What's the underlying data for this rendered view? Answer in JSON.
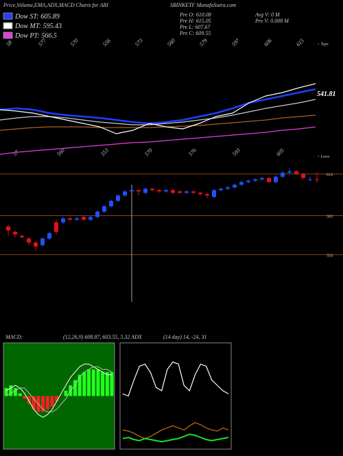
{
  "header": {
    "title": "Price,Volume,EMA,ADX,MACD Charts for ARI",
    "site": "SBINKETF MunafaSutra.com",
    "legend": [
      {
        "label": "Dow ST: 605.89",
        "color": "#1e40ff"
      },
      {
        "label": "Dow MT: 595.43",
        "color": "#ffffff"
      },
      {
        "label": "Dow PT: 566.5",
        "color": "#e040e0"
      }
    ],
    "info": [
      "Pre O: 610.08",
      "Pre H: 615.05",
      "Pre L: 607.67",
      "Pre C: 609.55",
      "Avg V: 0 M",
      "Pre V: 0.008 M"
    ]
  },
  "chart_data": [
    {
      "type": "line",
      "tops_label": "< Tops",
      "lows_label": "< Lows",
      "level_label": "541.81",
      "top_labels": [
        "58",
        "577",
        "570",
        "556",
        "573",
        "560",
        "579",
        "597",
        "606",
        "615"
      ],
      "bottom_labels": [
        "57",
        "560",
        "553",
        "570",
        "576",
        "593",
        "605"
      ],
      "ylim": [
        480,
        655
      ],
      "series": [
        {
          "name": "Price",
          "color": "#ffffff",
          "values": [
            555,
            553,
            550,
            545,
            540,
            535,
            530,
            520,
            525,
            535,
            530,
            527,
            535,
            545,
            550,
            565,
            575,
            580,
            587,
            593
          ]
        },
        {
          "name": "EMA short",
          "color": "#1e40ff",
          "values": [
            555,
            557,
            555,
            550,
            547,
            545,
            543,
            540,
            537,
            535,
            537,
            540,
            545,
            550,
            557,
            565,
            570,
            575,
            580,
            585
          ]
        },
        {
          "name": "EMA mid",
          "color": "#cccccc",
          "values": [
            540,
            543,
            545,
            545,
            543,
            540,
            537,
            535,
            533,
            533,
            535,
            537,
            540,
            543,
            547,
            552,
            557,
            561,
            565,
            570
          ]
        },
        {
          "name": "EMA long",
          "color": "#b06020",
          "values": [
            525,
            527,
            529,
            530,
            530,
            530,
            529,
            529,
            529,
            529,
            530,
            531,
            532,
            534,
            536,
            538,
            540,
            543,
            545,
            547
          ]
        },
        {
          "name": "EMA longest",
          "color": "#e040e0",
          "values": [
            490,
            493,
            495,
            497,
            499,
            501,
            503,
            505,
            507,
            508,
            510,
            512,
            514,
            516,
            518,
            520,
            522,
            525,
            527,
            530
          ]
        }
      ]
    },
    {
      "type": "candlestick",
      "ylim": [
        519,
        621
      ],
      "yticks": [
        614,
        583,
        554
      ],
      "up_color": "#2050ff",
      "down_color": "#e01020",
      "candles": [
        {
          "o": 575,
          "h": 576,
          "l": 568,
          "c": 572
        },
        {
          "o": 571,
          "h": 572,
          "l": 567,
          "c": 569
        },
        {
          "o": 568,
          "h": 569,
          "l": 566,
          "c": 567
        },
        {
          "o": 566,
          "h": 567,
          "l": 561,
          "c": 563
        },
        {
          "o": 563,
          "h": 564,
          "l": 557,
          "c": 560
        },
        {
          "o": 561,
          "h": 567,
          "l": 560,
          "c": 566
        },
        {
          "o": 566,
          "h": 571,
          "l": 565,
          "c": 570
        },
        {
          "o": 578,
          "h": 580,
          "l": 569,
          "c": 571
        },
        {
          "o": 578,
          "h": 582,
          "l": 577,
          "c": 581
        },
        {
          "o": 581,
          "h": 582,
          "l": 579,
          "c": 580
        },
        {
          "o": 580,
          "h": 582,
          "l": 579,
          "c": 581
        },
        {
          "o": 582,
          "h": 583,
          "l": 579,
          "c": 580
        },
        {
          "o": 580,
          "h": 583,
          "l": 579,
          "c": 582
        },
        {
          "o": 582,
          "h": 587,
          "l": 581,
          "c": 586
        },
        {
          "o": 586,
          "h": 591,
          "l": 585,
          "c": 590
        },
        {
          "o": 590,
          "h": 595,
          "l": 589,
          "c": 594
        },
        {
          "o": 594,
          "h": 599,
          "l": 593,
          "c": 598
        },
        {
          "o": 598,
          "h": 602,
          "l": 597,
          "c": 601
        },
        {
          "o": 601,
          "h": 606,
          "l": 519,
          "c": 602
        },
        {
          "o": 602,
          "h": 603,
          "l": 598,
          "c": 601
        },
        {
          "o": 600,
          "h": 604,
          "l": 599,
          "c": 603
        },
        {
          "o": 603,
          "h": 604,
          "l": 601,
          "c": 602
        },
        {
          "o": 602,
          "h": 603,
          "l": 600,
          "c": 601
        },
        {
          "o": 601,
          "h": 603,
          "l": 600,
          "c": 602
        },
        {
          "o": 602,
          "h": 603,
          "l": 599,
          "c": 600
        },
        {
          "o": 601,
          "h": 602,
          "l": 599,
          "c": 600
        },
        {
          "o": 600,
          "h": 602,
          "l": 599,
          "c": 601
        },
        {
          "o": 601,
          "h": 602,
          "l": 599,
          "c": 600
        },
        {
          "o": 600,
          "h": 601,
          "l": 598,
          "c": 599
        },
        {
          "o": 599,
          "h": 600,
          "l": 596,
          "c": 598
        },
        {
          "o": 597,
          "h": 603,
          "l": 596,
          "c": 602
        },
        {
          "o": 602,
          "h": 604,
          "l": 601,
          "c": 603
        },
        {
          "o": 603,
          "h": 605,
          "l": 602,
          "c": 604
        },
        {
          "o": 604,
          "h": 607,
          "l": 603,
          "c": 606
        },
        {
          "o": 606,
          "h": 609,
          "l": 605,
          "c": 608
        },
        {
          "o": 608,
          "h": 610,
          "l": 607,
          "c": 609
        },
        {
          "o": 609,
          "h": 611,
          "l": 608,
          "c": 610
        },
        {
          "o": 610,
          "h": 612,
          "l": 609,
          "c": 611
        },
        {
          "o": 611,
          "h": 612,
          "l": 607,
          "c": 608
        },
        {
          "o": 608,
          "h": 613,
          "l": 607,
          "c": 612
        },
        {
          "o": 612,
          "h": 616,
          "l": 611,
          "c": 615
        },
        {
          "o": 615,
          "h": 618,
          "l": 614,
          "c": 616
        },
        {
          "o": 616,
          "h": 617,
          "l": 613,
          "c": 614
        },
        {
          "o": 614,
          "h": 615,
          "l": 610,
          "c": 611
        },
        {
          "o": 610,
          "h": 612,
          "l": 609,
          "c": 610
        },
        {
          "o": 610.08,
          "h": 615.05,
          "l": 607.67,
          "c": 609.55
        }
      ]
    },
    {
      "type": "macd",
      "label": "MACD:",
      "params": "(12,26,9) 608.87, 603.55, 5.32 ADX",
      "ylim": [
        -20,
        20
      ],
      "background": "#006600",
      "histogram": [
        3,
        4,
        3,
        1,
        -1,
        -3,
        -5,
        -6,
        -6,
        -5,
        -4,
        -2,
        0,
        2,
        4,
        6,
        8,
        9,
        10,
        10,
        10,
        9,
        9,
        9
      ],
      "series": [
        {
          "name": "MACD",
          "color": "#ffffff",
          "values": [
            2,
            3,
            4,
            3,
            1,
            -2,
            -5,
            -7,
            -8,
            -7,
            -5,
            -2,
            1,
            4,
            7,
            9,
            11,
            12,
            12,
            11,
            10,
            9,
            8,
            8
          ]
        },
        {
          "name": "Signal",
          "color": "#bbbbbb",
          "values": [
            0,
            1,
            2,
            3,
            3,
            1,
            -1,
            -3,
            -5,
            -6,
            -6,
            -5,
            -3,
            -1,
            2,
            4,
            7,
            9,
            10,
            11,
            11,
            10,
            10,
            9
          ]
        }
      ]
    },
    {
      "type": "adx",
      "params": "(14 day) 14, -24, 31",
      "ylim": [
        0,
        100
      ],
      "series": [
        {
          "name": "DI+",
          "color": "#ffffff",
          "values": [
            52,
            50,
            65,
            78,
            80,
            72,
            58,
            55,
            75,
            82,
            80,
            60,
            55,
            70,
            80,
            78,
            65,
            60,
            55,
            52
          ]
        },
        {
          "name": "DI-",
          "color": "#d07010",
          "values": [
            18,
            17,
            15,
            12,
            10,
            12,
            15,
            18,
            20,
            22,
            20,
            18,
            22,
            25,
            23,
            20,
            18,
            17,
            20,
            18
          ]
        },
        {
          "name": "ADX",
          "color": "#20e020",
          "values": [
            10,
            11,
            9,
            8,
            10,
            9,
            8,
            7,
            8,
            9,
            10,
            12,
            14,
            13,
            11,
            9,
            8,
            9,
            10,
            11
          ]
        }
      ]
    }
  ]
}
